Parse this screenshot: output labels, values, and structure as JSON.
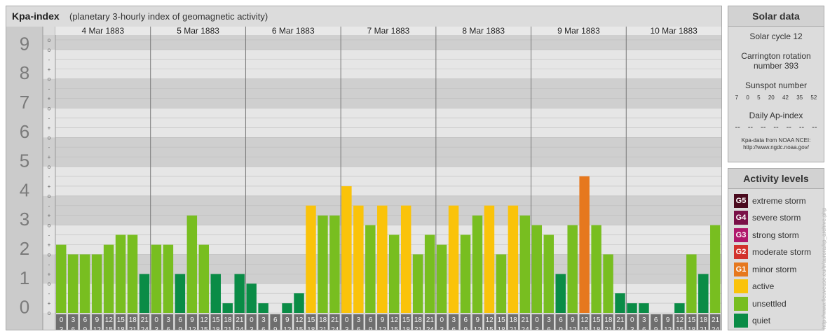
{
  "title": "Kpa-index",
  "subtitle": "(planetary 3-hourly index of geomagnetic activity)",
  "chart_data": {
    "type": "bar",
    "days": [
      "4 Mar 1883",
      "5 Mar 1883",
      "6 Mar 1883",
      "7 Mar 1883",
      "8 Mar 1883",
      "9 Mar 1883",
      "10 Mar 1883"
    ],
    "y_ticks": [
      "0",
      "1",
      "2",
      "3",
      "4",
      "5",
      "6",
      "7",
      "8",
      "9"
    ],
    "minor_ticks": [
      "+",
      "o",
      "-"
    ],
    "top_tick": "o",
    "time_start_labels": [
      "0",
      "3",
      "6",
      "9",
      "12",
      "15",
      "18",
      "21"
    ],
    "time_end_labels": [
      "3",
      "6",
      "9",
      "12",
      "15",
      "18",
      "21",
      "24"
    ],
    "ylim": [
      0,
      9
    ],
    "values": [
      [
        2.33,
        2.0,
        2.0,
        2.0,
        2.33,
        2.67,
        2.67,
        1.33
      ],
      [
        2.33,
        2.33,
        1.33,
        3.33,
        2.33,
        1.33,
        0.33,
        1.33
      ],
      [
        1.0,
        0.33,
        0.0,
        0.33,
        0.67,
        3.67,
        3.33,
        3.33
      ],
      [
        4.33,
        3.67,
        3.0,
        3.67,
        2.67,
        3.67,
        2.0,
        2.67
      ],
      [
        2.33,
        3.67,
        2.67,
        3.33,
        3.67,
        2.0,
        3.67,
        3.33
      ],
      [
        3.0,
        2.67,
        1.33,
        3.0,
        4.67,
        3.0,
        2.0,
        0.67
      ],
      [
        0.33,
        0.33,
        0.0,
        0.0,
        0.33,
        2.0,
        1.33,
        3.0
      ]
    ],
    "levels": [
      {
        "code": "G5",
        "label": "extreme storm",
        "color": "#4a0a1e"
      },
      {
        "code": "G4",
        "label": "severe storm",
        "color": "#7a1048"
      },
      {
        "code": "G3",
        "label": "strong storm",
        "color": "#b0186c"
      },
      {
        "code": "G2",
        "label": "moderate storm",
        "color": "#d2322c"
      },
      {
        "code": "G1",
        "label": "minor storm",
        "color": "#e6781e"
      },
      {
        "code": "",
        "label": "active",
        "color": "#fac30a"
      },
      {
        "code": "",
        "label": "unsettled",
        "color": "#78be20"
      },
      {
        "code": "",
        "label": "quiet",
        "color": "#0a8c46"
      }
    ]
  },
  "solar": {
    "heading": "Solar data",
    "cycle": "Solar cycle 12",
    "carrington_line1": "Carrington rotation",
    "carrington_line2": "number 393",
    "sunspot_label": "Sunspot number",
    "sunspots": [
      "7",
      "0",
      "5",
      "20",
      "42",
      "35",
      "52"
    ],
    "ap_label": "Daily Ap-index",
    "ap_values": [
      "--",
      "--",
      "--",
      "--",
      "--",
      "--",
      "--"
    ],
    "credit_line1": "Kpa-data from NOAA NCEI:",
    "credit_line2": "http://www.ngdc.noaa.gov/"
  },
  "levels_panel": {
    "heading": "Activity levels"
  },
  "watermark": "http://www.fleuveuse.eu/tr/aurora/kp_archive.php"
}
